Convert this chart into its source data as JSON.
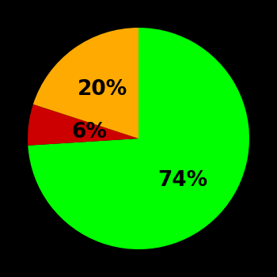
{
  "slices": [
    74,
    6,
    20
  ],
  "colors": [
    "#00ff00",
    "#cc0000",
    "#ffaa00"
  ],
  "labels": [
    "74%",
    "6%",
    "20%"
  ],
  "background_color": "#000000",
  "startangle": 90,
  "label_fontsize": 19,
  "label_fontweight": "bold",
  "label_radii": [
    0.55,
    0.45,
    0.55
  ]
}
